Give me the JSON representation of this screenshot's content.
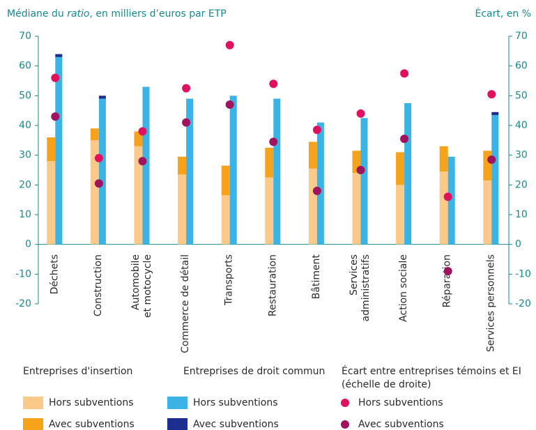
{
  "chart_data": {
    "type": "bar",
    "y_label": [
      "Médiane du ",
      "ratio",
      ", en milliers d’euros par ETP"
    ],
    "y2_label": "Écart, en %",
    "categories": [
      [
        "Déchets"
      ],
      [
        "Construction"
      ],
      [
        "Automobile",
        "et motocycle"
      ],
      [
        "Commerce de détail"
      ],
      [
        "Transports"
      ],
      [
        "Restauration"
      ],
      [
        "Bâtiment"
      ],
      [
        "Services",
        "administratifs"
      ],
      [
        "Action sociale"
      ],
      [
        "Réparation"
      ],
      [
        "Services personnels"
      ]
    ],
    "legend_groups": [
      [
        "Entreprises d'insertion"
      ],
      [
        "Entreprises de droit commun"
      ],
      [
        "Écart entre entreprises témoins et EI",
        "(échelle de droite)"
      ]
    ],
    "series": [
      {
        "name": "Hors subventions",
        "group": 0,
        "stack": "ei",
        "color": "#fbc98a",
        "values": [
          28,
          35,
          33,
          23.5,
          16.5,
          22.5,
          25.5,
          24,
          20,
          24.5,
          21.5
        ]
      },
      {
        "name": "Avec subventions",
        "group": 0,
        "stack": "ei",
        "color": "#f7a21b",
        "values": [
          8,
          4,
          5,
          6,
          10,
          10,
          9,
          7.5,
          11,
          8.5,
          10
        ]
      },
      {
        "name": "Hors subventions",
        "group": 1,
        "stack": "dc",
        "color": "#3bb4e5",
        "values": [
          63,
          49,
          53,
          49,
          50,
          49,
          41,
          42.5,
          47.5,
          29.5,
          43.5
        ]
      },
      {
        "name": "Avec subventions",
        "group": 1,
        "stack": "dc",
        "color": "#1d2e8e",
        "values": [
          1,
          1,
          0,
          0,
          0,
          0,
          0,
          0,
          0,
          0,
          1
        ]
      },
      {
        "name": "Hors subventions",
        "group": 2,
        "type": "scatter",
        "axis": "y2",
        "color": "#e0115f",
        "values": [
          56,
          29,
          38,
          52.5,
          67,
          54,
          38.5,
          44,
          57.5,
          16,
          50.5
        ]
      },
      {
        "name": "Avec subventions",
        "group": 2,
        "type": "scatter",
        "axis": "y2",
        "color": "#a0135e",
        "values": [
          43,
          20.5,
          28,
          41,
          47,
          34.5,
          18,
          25,
          35.5,
          -9,
          28.5
        ]
      }
    ],
    "ylim": [
      -20,
      70
    ],
    "yticks": [
      -20,
      -10,
      0,
      10,
      20,
      30,
      40,
      50,
      60,
      70
    ],
    "y2lim": [
      -20,
      70
    ],
    "y2ticks": [
      -20,
      -10,
      0,
      10,
      20,
      30,
      40,
      50,
      60,
      70
    ]
  }
}
